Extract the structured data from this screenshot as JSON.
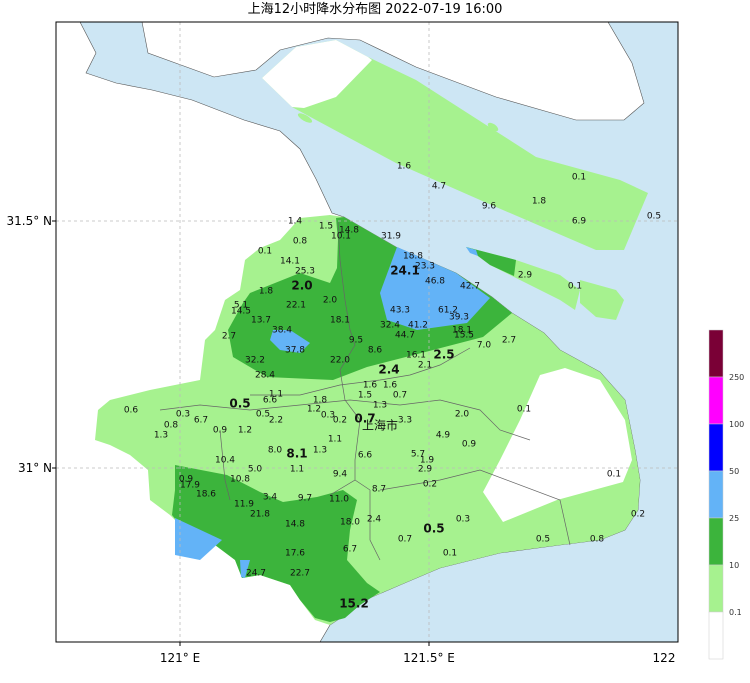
{
  "title": "上海12小时降水分布图 2022-07-19 16:00",
  "axes": {
    "lat_labels": [
      "31.5° N",
      "31° N"
    ],
    "lon_labels": [
      "121° E",
      "121.5° E",
      "122"
    ]
  },
  "city_label": "上海市",
  "colors": {
    "water": "#cde6f4",
    "level_0_1": "#a6f28f",
    "level_10": "#3cb43c",
    "level_25": "#63b3f7",
    "level_50": "#0000ff",
    "level_100": "#ff00ff",
    "level_250": "#7a0036",
    "no_rain": "#ffffff"
  },
  "colorbar": {
    "ticks": [
      "250",
      "100",
      "50",
      "25",
      "10",
      "0.1"
    ]
  },
  "station_values": [
    {
      "v": "1.6"
    },
    {
      "v": "4.7"
    },
    {
      "v": "9.6"
    },
    {
      "v": "1.8"
    },
    {
      "v": "0.1"
    },
    {
      "v": "6.9"
    },
    {
      "v": "0.5"
    },
    {
      "v": "1.4"
    },
    {
      "v": "1.5"
    },
    {
      "v": "14.8"
    },
    {
      "v": "10.1"
    },
    {
      "v": "31.9"
    },
    {
      "v": "0.8"
    },
    {
      "v": "0.1"
    },
    {
      "v": "14.1"
    },
    {
      "v": "25.3"
    },
    {
      "v": "2.0",
      "bold": true
    },
    {
      "v": "18.8"
    },
    {
      "v": "23.3"
    },
    {
      "v": "24.1",
      "bold": true
    },
    {
      "v": "46.8"
    },
    {
      "v": "42.7"
    },
    {
      "v": "2.9"
    },
    {
      "v": "0.1"
    },
    {
      "v": "1.8"
    },
    {
      "v": "2.0"
    },
    {
      "v": "22.1"
    },
    {
      "v": "5.1"
    },
    {
      "v": "14.5"
    },
    {
      "v": "13.7"
    },
    {
      "v": "18.1"
    },
    {
      "v": "43.3"
    },
    {
      "v": "61.2"
    },
    {
      "v": "39.3"
    },
    {
      "v": "38.4"
    },
    {
      "v": "32.4"
    },
    {
      "v": "41.2"
    },
    {
      "v": "18.1"
    },
    {
      "v": "15.5"
    },
    {
      "v": "2.7"
    },
    {
      "v": "37.8"
    },
    {
      "v": "9.5"
    },
    {
      "v": "44.7"
    },
    {
      "v": "7.0"
    },
    {
      "v": "2.7"
    },
    {
      "v": "32.2"
    },
    {
      "v": "22.0"
    },
    {
      "v": "8.6"
    },
    {
      "v": "16.1"
    },
    {
      "v": "2.5",
      "bold": true
    },
    {
      "v": "2.1"
    },
    {
      "v": "28.4"
    },
    {
      "v": "2.4",
      "bold": true
    },
    {
      "v": "1.6"
    },
    {
      "v": "1.6"
    },
    {
      "v": "1.5"
    },
    {
      "v": "0.7"
    },
    {
      "v": "1.3"
    },
    {
      "v": "0.6"
    },
    {
      "v": "0.5",
      "bold": true
    },
    {
      "v": "1.1"
    },
    {
      "v": "6.6"
    },
    {
      "v": "1.8"
    },
    {
      "v": "1.2"
    },
    {
      "v": "0.3"
    },
    {
      "v": "6.7"
    },
    {
      "v": "0.5"
    },
    {
      "v": "2.2"
    },
    {
      "v": "0.3"
    },
    {
      "v": "0.2"
    },
    {
      "v": "0.7",
      "bold": true
    },
    {
      "v": "3.3"
    },
    {
      "v": "2.0"
    },
    {
      "v": "0.8"
    },
    {
      "v": "0.1"
    },
    {
      "v": "1.3"
    },
    {
      "v": "0.9"
    },
    {
      "v": "1.2"
    },
    {
      "v": "4.9"
    },
    {
      "v": "0.9"
    },
    {
      "v": "1.1"
    },
    {
      "v": "8.0"
    },
    {
      "v": "8.1",
      "bold": true
    },
    {
      "v": "1.3"
    },
    {
      "v": "6.6"
    },
    {
      "v": "5.7"
    },
    {
      "v": "1.9"
    },
    {
      "v": "10.4"
    },
    {
      "v": "5.0"
    },
    {
      "v": "1.1"
    },
    {
      "v": "2.9"
    },
    {
      "v": "9.4"
    },
    {
      "v": "0.1"
    },
    {
      "v": "0.9"
    },
    {
      "v": "17.9"
    },
    {
      "v": "10.8"
    },
    {
      "v": "0.2"
    },
    {
      "v": "8.7"
    },
    {
      "v": "18.6"
    },
    {
      "v": "3.4"
    },
    {
      "v": "9.7"
    },
    {
      "v": "11.0"
    },
    {
      "v": "11.9"
    },
    {
      "v": "21.8"
    },
    {
      "v": "0.2"
    },
    {
      "v": "0.3"
    },
    {
      "v": "14.8"
    },
    {
      "v": "18.0"
    },
    {
      "v": "2.4"
    },
    {
      "v": "0.5",
      "bold": true
    },
    {
      "v": "0.7"
    },
    {
      "v": "0.5"
    },
    {
      "v": "0.8"
    },
    {
      "v": "17.6"
    },
    {
      "v": "6.7"
    },
    {
      "v": "0.1"
    },
    {
      "v": "24.7"
    },
    {
      "v": "22.7"
    },
    {
      "v": "15.2",
      "bold": true
    }
  ]
}
